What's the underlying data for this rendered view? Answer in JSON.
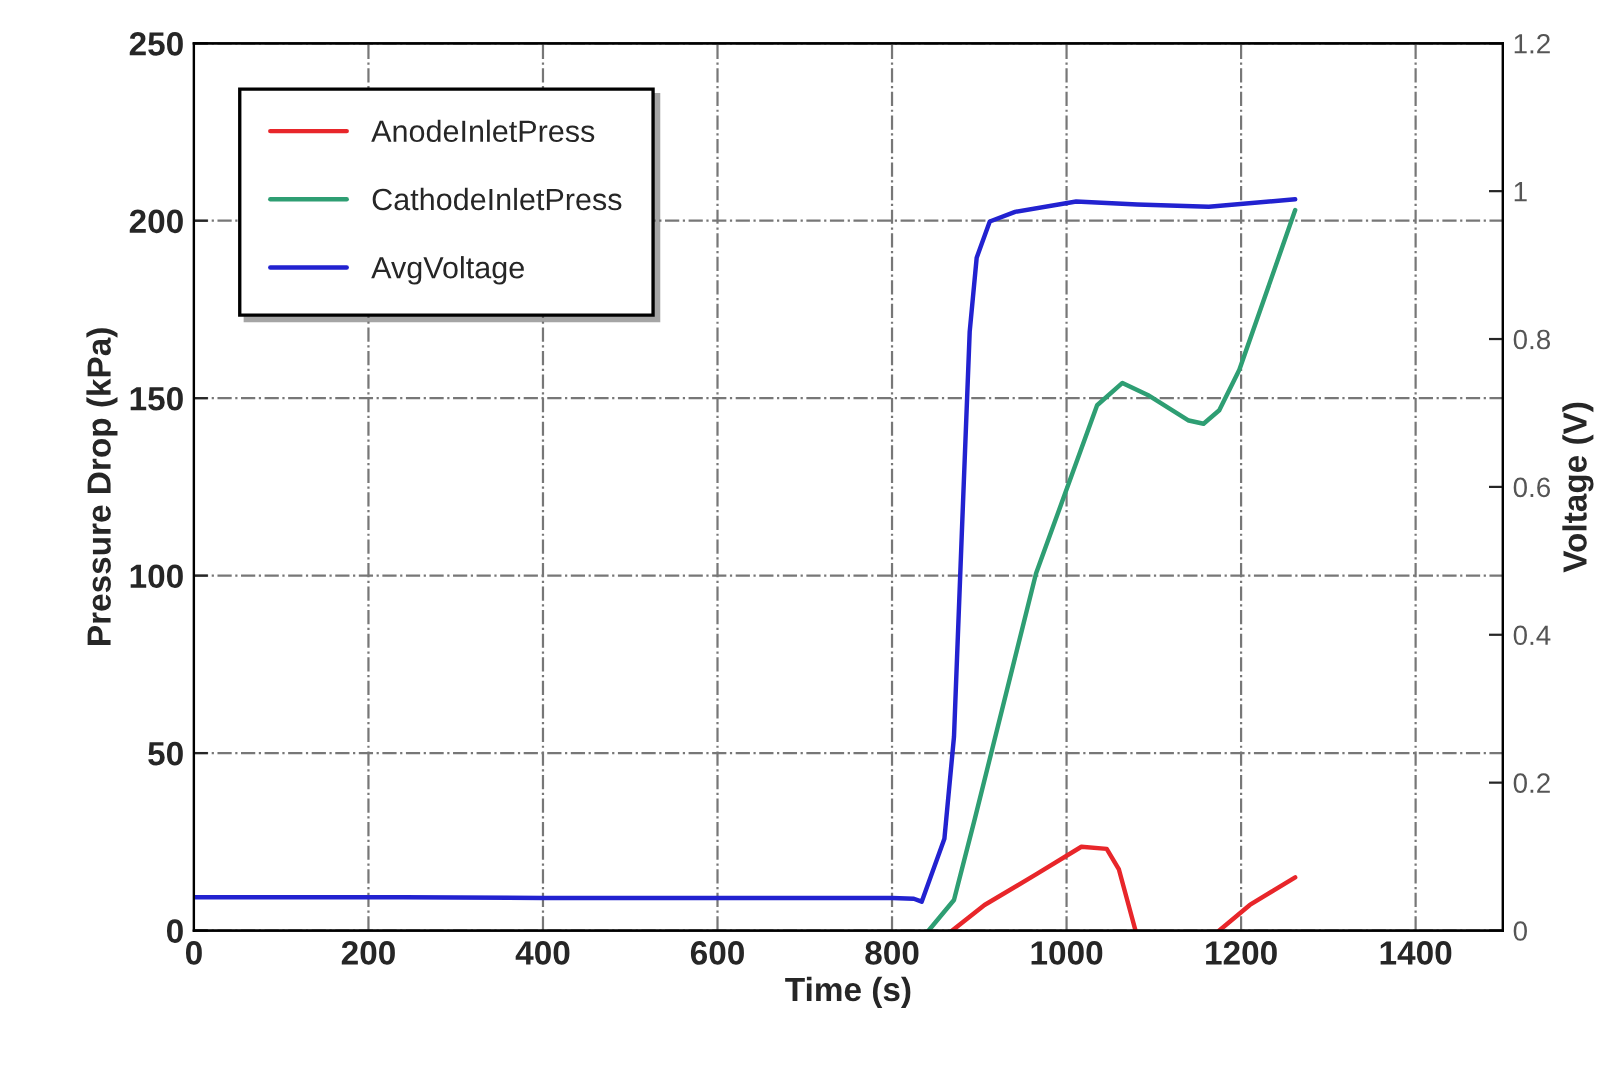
{
  "chart_data": {
    "type": "line",
    "xlabel": "Time (s)",
    "ylabel": "Pressure Drop (kPa)",
    "y2label": "Voltage (V)",
    "xlim": [
      0,
      1500
    ],
    "xticks": [
      0,
      200,
      400,
      600,
      800,
      1000,
      1200,
      1400
    ],
    "ylim": [
      0,
      250
    ],
    "yticks": [
      0,
      50,
      100,
      150,
      200,
      250
    ],
    "y2lim": [
      0,
      1.2
    ],
    "y2ticks": [
      0,
      0.2,
      0.4,
      0.6,
      0.8,
      1,
      1.2
    ],
    "grid": true,
    "legend": "top left",
    "line_style": "solid",
    "marker": "none",
    "series": [
      {
        "name": "AnodeInletPress",
        "color": "#e8262a",
        "x": [
          869,
          906,
          965,
          1017,
          1046,
          1060,
          1079,
          1120,
          1175,
          1210,
          1262
        ],
        "values": [
          0,
          7.2,
          15.8,
          23.6,
          23,
          17.2,
          0,
          null,
          0,
          7.2,
          15
        ]
      },
      {
        "name": "CathodeInletPress",
        "color": "#2e9e73",
        "x": [
          842,
          871,
          895,
          965,
          1035,
          1064,
          1093,
          1140,
          1157,
          1175,
          1198,
          1262
        ],
        "values": [
          0,
          8.6,
          31.6,
          100.6,
          148,
          154.3,
          150.9,
          143.7,
          142.8,
          146.6,
          158,
          203
        ]
      },
      {
        "name": "AvgVoltage",
        "color": "#2222d0",
        "axis": "y2",
        "x": [
          0,
          240,
          400,
          600,
          800,
          825,
          834,
          860,
          871,
          880,
          889,
          897,
          912,
          941,
          1011,
          1081,
          1163,
          1262
        ],
        "values": [
          0.045,
          0.045,
          0.044,
          0.044,
          0.044,
          0.043,
          0.039,
          0.124,
          0.262,
          0.538,
          0.81,
          0.91,
          0.959,
          0.972,
          0.986,
          0.982,
          0.979,
          0.989
        ]
      }
    ]
  }
}
